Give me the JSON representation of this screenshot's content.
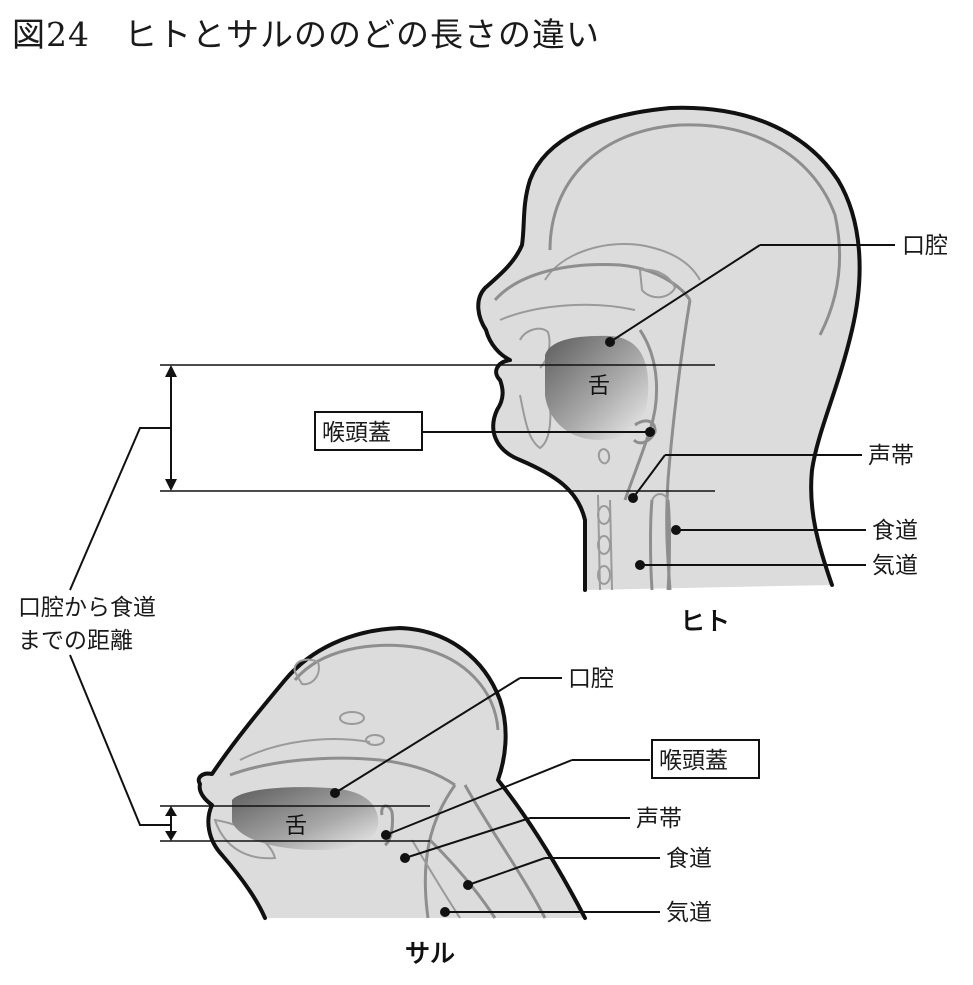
{
  "figure": {
    "title": "図24　ヒトとサルののどの長さの違い"
  },
  "human": {
    "caption": "ヒト",
    "labels": {
      "oral_cavity": "口腔",
      "epiglottis": "喉頭蓋",
      "vocal_cords": "声帯",
      "esophagus": "食道",
      "trachea": "気道",
      "tongue": "舌"
    }
  },
  "monkey": {
    "caption": "サル",
    "labels": {
      "oral_cavity": "口腔",
      "epiglottis": "喉頭蓋",
      "vocal_cords": "声帯",
      "esophagus": "食道",
      "trachea": "気道",
      "tongue": "舌"
    }
  },
  "distance_label": {
    "line1": "口腔から食道",
    "line2": "までの距離"
  },
  "colors": {
    "outline": "#111111",
    "head_fill": "#dcdcdc",
    "inner_structure": "#8e8e8e",
    "tongue_dark": "#6a6a6a",
    "tongue_light": "#f2f2f2"
  }
}
